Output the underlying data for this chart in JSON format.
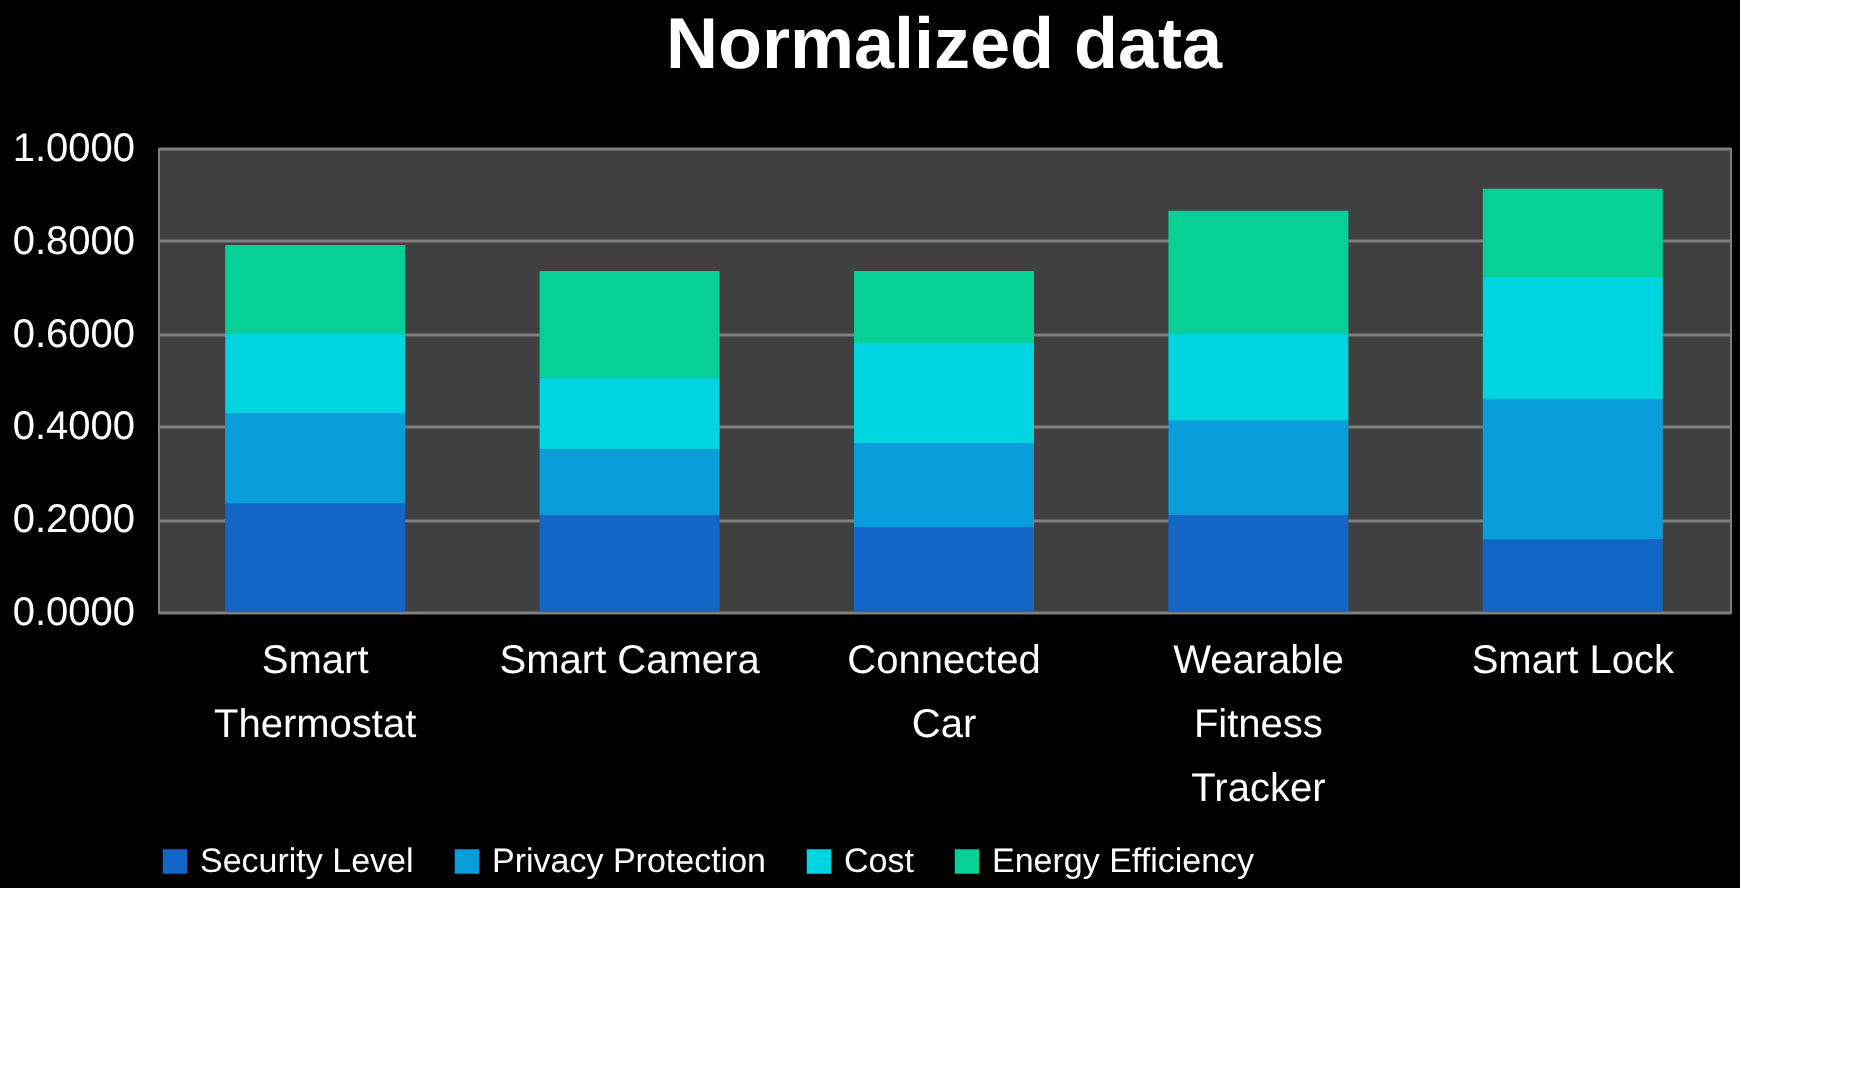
{
  "chart_data": {
    "type": "bar",
    "title": "Normalized data",
    "stacked": true,
    "categories": [
      "Smart Thermostat",
      "Smart Camera",
      "Connected Car",
      "Wearable Fitness Tracker",
      "Smart Lock"
    ],
    "series": [
      {
        "name": "Security Level",
        "color": "#1366c6",
        "values": [
          0.234,
          0.209,
          0.183,
          0.209,
          0.157
        ]
      },
      {
        "name": "Privacy Protection",
        "color": "#0a9ddc",
        "values": [
          0.195,
          0.142,
          0.181,
          0.203,
          0.301
        ]
      },
      {
        "name": "Cost",
        "color": "#00d4e0",
        "values": [
          0.172,
          0.155,
          0.216,
          0.189,
          0.264
        ]
      },
      {
        "name": "Energy Efficiency",
        "color": "#06d095",
        "values": [
          0.19,
          0.229,
          0.155,
          0.264,
          0.19
        ]
      }
    ],
    "ylim": [
      0,
      1
    ],
    "yticks": [
      {
        "value": 0,
        "label": "0.0000"
      },
      {
        "value": 0.2,
        "label": "0.2000"
      },
      {
        "value": 0.4,
        "label": "0.4000"
      },
      {
        "value": 0.6,
        "label": "0.6000"
      },
      {
        "value": 0.8,
        "label": "0.8000"
      },
      {
        "value": 1,
        "label": "1.0000"
      }
    ],
    "grid": "y",
    "legend": "bottom"
  }
}
